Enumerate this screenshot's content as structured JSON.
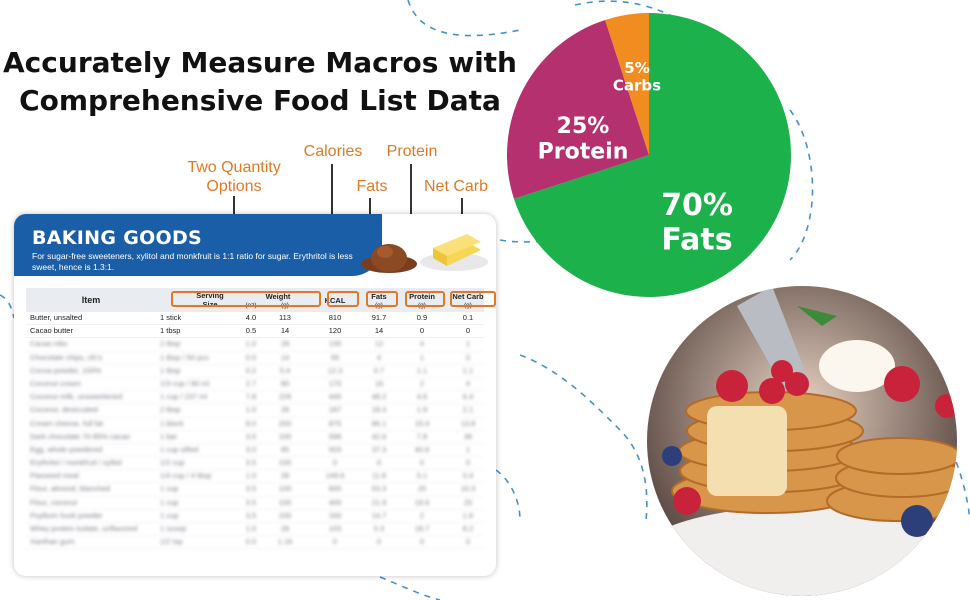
{
  "headline": {
    "line1": "Accurately Measure Macros with",
    "line2": "Comprehensive Food List Data"
  },
  "callouts": {
    "two_quantity": [
      "Two Quantity",
      "Options"
    ],
    "calories": "Calories",
    "fats": "Fats",
    "protein": "Protein",
    "net_carb": "Net Carb"
  },
  "pie": {
    "slices": [
      {
        "label_pct": "70%",
        "label_name": "Fats",
        "value": 70,
        "color": "#1db14b"
      },
      {
        "label_pct": "25%",
        "label_name": "Protein",
        "value": 25,
        "color": "#b5306e"
      },
      {
        "label_pct": "5%",
        "label_name": "Carbs",
        "value": 5,
        "color": "#f08c20"
      }
    ]
  },
  "card": {
    "title": "BAKING GOODS",
    "note": "For sugar-free sweeteners, xylitol and monkfruit is 1:1 ratio for sugar. Erythritol is less sweet, hence is 1.3:1.",
    "header": {
      "item": "Item",
      "serving_size": [
        "Serving",
        "Size"
      ],
      "weight": "Weight",
      "oz": "(oz)",
      "g": "(g)",
      "kcal": "KCAL",
      "fats": "Fats",
      "fats_unit": "(g)",
      "protein": "Protein",
      "protein_unit": "(g)",
      "net_carb": "Net Carb",
      "net_carb_unit": "(g)"
    },
    "rows": [
      [
        "Butter, unsalted",
        "1 stick",
        "4.0",
        "113",
        "810",
        "91.7",
        "0.9",
        "0.1"
      ],
      [
        "Cacao butter",
        "1 tbsp",
        "0.5",
        "14",
        "120",
        "14",
        "0",
        "0"
      ],
      [
        "Cacao nibs",
        "2 tbsp",
        "1.0",
        "28",
        "130",
        "12",
        "4",
        "1"
      ],
      [
        "Chocolate chips, cfc's",
        "1 tbsp / 50 pcs",
        "0.5",
        "14",
        "55",
        "4",
        "1",
        "0"
      ],
      [
        "Cocoa powder, 100%",
        "1 tbsp",
        "0.2",
        "5.4",
        "12.3",
        "0.7",
        "1.1",
        "1.1"
      ],
      [
        "Coconut cream",
        "1/3 cup / 80 ml",
        "2.7",
        "80",
        "170",
        "16",
        "2",
        "4"
      ],
      [
        "Coconut milk, unsweetened",
        "1 cup / 237 ml",
        "7.8",
        "226",
        "445",
        "48.2",
        "4.6",
        "6.4"
      ],
      [
        "Coconut, desiccated",
        "2 tbsp",
        "1.0",
        "28",
        "187",
        "18.3",
        "1.9",
        "2.1"
      ],
      [
        "Cream cheese, full fat",
        "1 block",
        "8.0",
        "200",
        "875",
        "86.1",
        "15.4",
        "13.8"
      ],
      [
        "Dark chocolate 70-85% cacao",
        "1 bar",
        "3.5",
        "100",
        "598",
        "42.6",
        "7.8",
        "36"
      ],
      [
        "Egg, whole powdered",
        "1 cup sifted",
        "3.0",
        "85",
        "503",
        "37.3",
        "40.6",
        "1"
      ],
      [
        "Erythritol / monkfruit / xylitol",
        "1/2 cup",
        "3.5",
        "100",
        "0",
        "0",
        "0",
        "0"
      ],
      [
        "Flaxseed meal",
        "1/4 cup / 4 tbsp",
        "1.0",
        "28",
        "149.6",
        "11.8",
        "5.1",
        "0.4"
      ],
      [
        "Flour, almond, blanched",
        "1 cup",
        "3.5",
        "100",
        "600",
        "53.3",
        "20",
        "10.3"
      ],
      [
        "Flour, coconut",
        "1 cup",
        "3.5",
        "100",
        "400",
        "21.9",
        "19.6",
        "20"
      ],
      [
        "Psyllium husk powder",
        "1 cup",
        "3.5",
        "100",
        "160",
        "14.7",
        "2",
        "1.6"
      ],
      [
        "Whey protein isolate, unflavored",
        "1 scoop",
        "1.0",
        "28",
        "103",
        "0.3",
        "18.7",
        "8.2"
      ],
      [
        "Xanthan gum",
        "1/2 tsp",
        "0.0",
        "1.16",
        "0",
        "0",
        "0",
        "0"
      ]
    ]
  }
}
